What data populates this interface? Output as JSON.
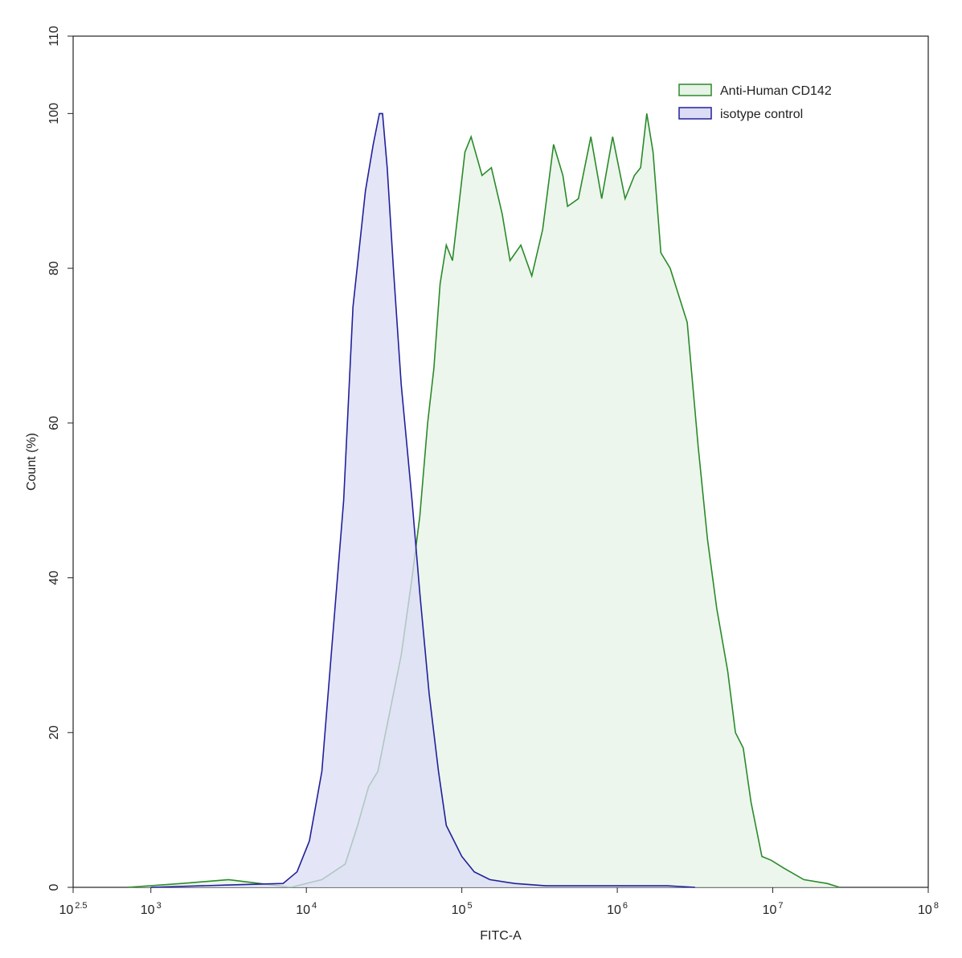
{
  "chart_data": {
    "type": "area",
    "xlabel": "FITC-A",
    "ylabel": "Count  (%)",
    "xscale": "log",
    "xlim": [
      316.23,
      100000000
    ],
    "xticks": [
      {
        "value": 316.23,
        "label": "10",
        "sup": "2.5"
      },
      {
        "value": 1000,
        "label": "10",
        "sup": "3"
      },
      {
        "value": 10000,
        "label": "10",
        "sup": "4"
      },
      {
        "value": 100000,
        "label": "10",
        "sup": "5"
      },
      {
        "value": 1000000,
        "label": "10",
        "sup": "6"
      },
      {
        "value": 10000000,
        "label": "10",
        "sup": "7"
      },
      {
        "value": 100000000,
        "label": "10",
        "sup": "8"
      }
    ],
    "ylim": [
      0,
      110
    ],
    "yticks": [
      0,
      20,
      40,
      60,
      80,
      100,
      110
    ],
    "legend": "upper right",
    "series": [
      {
        "name": "Anti-Human CD142",
        "color": "#2a8a2a",
        "fill": "#e6f3e6",
        "x": [
          708,
          1585,
          3162,
          5012,
          7943,
          12589,
          17783,
          21380,
          25119,
          28840,
          32359,
          36308,
          40738,
          47863,
          53703,
          60256,
          66069,
          72444,
          79433,
          87096,
          95499,
          104713,
          114815,
          134896,
          154882,
          181970,
          204174,
          239883,
          281838,
          331131,
          389045,
          446684,
          478630,
          562341,
          676083,
          794328,
          933254,
          1122018,
          1288250,
          1412538,
          1548817,
          1698244,
          1905461,
          2187762,
          2818383,
          3311311,
          3801894,
          4365158,
          5128614,
          5754399,
          6456542,
          7244360,
          8511380,
          9772372,
          11748976,
          15848932,
          22387211,
          26915348
        ],
        "values": [
          0,
          0.5,
          1,
          0.5,
          0,
          1,
          3,
          8,
          13,
          15,
          20,
          25,
          30,
          40,
          48,
          60,
          67,
          78,
          83,
          81,
          88,
          95,
          97,
          92,
          93,
          87,
          81,
          83,
          79,
          85,
          96,
          92,
          88,
          89,
          97,
          89,
          97,
          89,
          92,
          93,
          100,
          95,
          82,
          80,
          73,
          57,
          45,
          36,
          28,
          20,
          18,
          11,
          4,
          3.5,
          2.5,
          1,
          0.5,
          0
        ]
      },
      {
        "name": "isotype control",
        "color": "#20209a",
        "fill": "#dcdcf6",
        "x": [
          1000,
          3162,
          7079,
          8710,
          10471,
          12589,
          14454,
          17378,
          19953,
          23988,
          26915,
          29512,
          30903,
          33113,
          36308,
          40738,
          47863,
          53703,
          61660,
          70795,
          79433,
          100000,
          120226,
          151356,
          218776,
          346737,
          2089296,
          3162278
        ],
        "values": [
          0,
          0.3,
          0.5,
          2,
          6,
          15,
          30,
          50,
          75,
          90,
          96,
          100,
          100,
          93,
          80,
          65,
          50,
          38,
          25,
          15,
          8,
          4,
          2,
          1,
          0.5,
          0.2,
          0.2,
          0
        ]
      }
    ]
  }
}
